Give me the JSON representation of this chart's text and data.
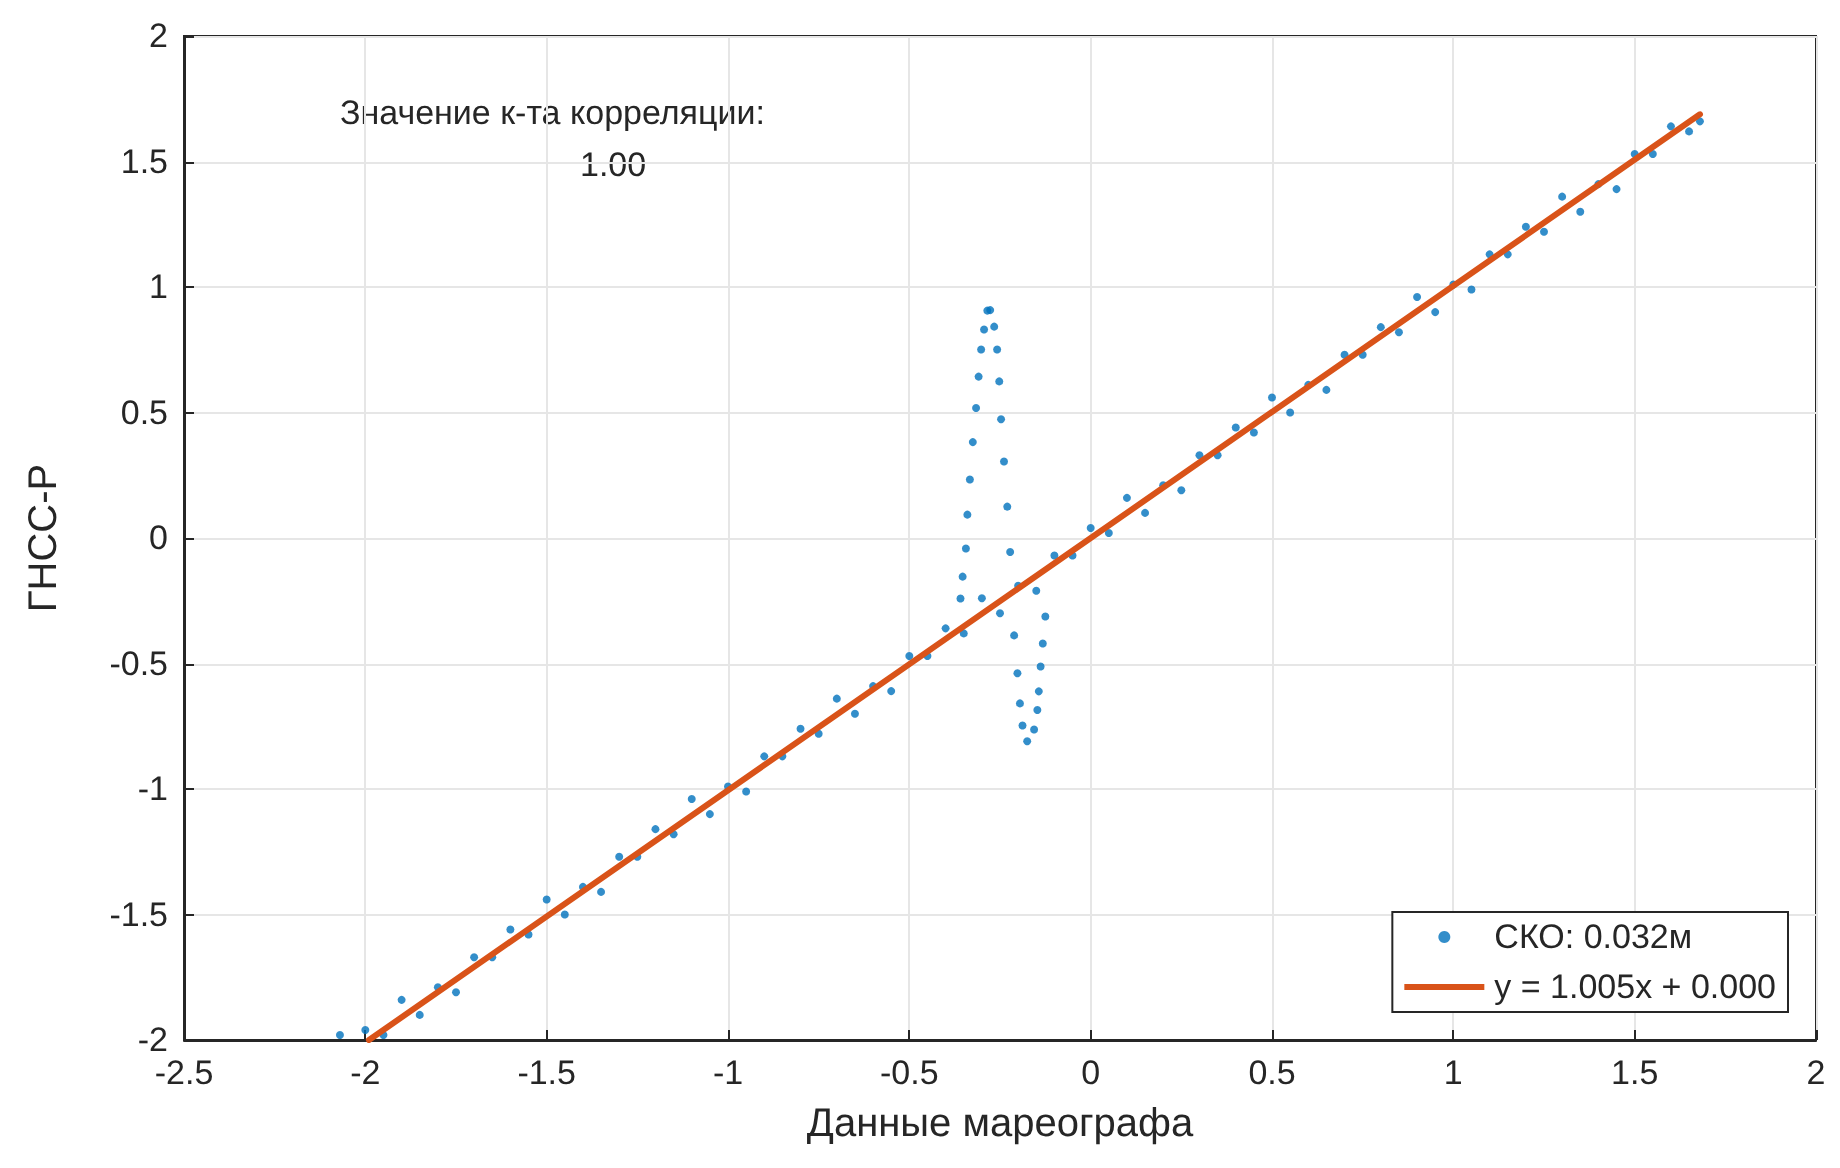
{
  "chart_data": {
    "type": "scatter",
    "xlabel": "Данные мареографа",
    "ylabel": "ГНСС-Р",
    "annotations": [
      "Значение к-та корреляции:",
      "1.00"
    ],
    "xlim": [
      -2.5,
      2
    ],
    "xticks": [
      -2.5,
      -2,
      -1.5,
      -1,
      -0.5,
      0,
      0.5,
      1,
      1.5,
      2
    ],
    "ylim": [
      -2,
      2
    ],
    "yticks": [
      -2,
      -1.5,
      -1,
      -0.5,
      0,
      0.5,
      1,
      1.5,
      2
    ],
    "grid": true,
    "legend": "bottom right",
    "series": [
      {
        "name": "СКО: 0.032м",
        "marker": "circle",
        "color": "#0072bd",
        "x": [
          -2.07,
          -2.0,
          -1.95,
          -1.9,
          -1.85,
          -1.8,
          -1.75,
          -1.7,
          -1.65,
          -1.6,
          -1.55,
          -1.5,
          -1.45,
          -1.4,
          -1.35,
          -1.3,
          -1.25,
          -1.2,
          -1.15,
          -1.1,
          -1.05,
          -1.0,
          -0.95,
          -0.9,
          -0.85,
          -0.8,
          -0.75,
          -0.7,
          -0.65,
          -0.6,
          -0.55,
          -0.5,
          -0.45,
          -0.4,
          -0.35,
          -0.3,
          -0.25,
          -0.2,
          -0.15,
          -0.1,
          -0.05,
          0.0,
          0.05,
          0.1,
          0.15,
          0.2,
          0.25,
          0.3,
          0.35,
          0.4,
          0.45,
          0.5,
          0.55,
          0.6,
          0.65,
          0.7,
          0.75,
          0.8,
          0.85,
          0.9,
          0.95,
          1.0,
          1.05,
          1.1,
          1.15,
          1.2,
          1.25,
          1.3,
          1.35,
          1.4,
          1.45,
          1.5,
          1.55,
          1.6,
          1.65,
          1.68,
          -0.359,
          -0.353,
          -0.344,
          -0.34,
          -0.333,
          -0.325,
          -0.316,
          -0.309,
          -0.302,
          -0.294,
          -0.285,
          -0.277,
          -0.266,
          -0.258,
          -0.252,
          -0.247,
          -0.239,
          -0.23,
          -0.222,
          -0.211,
          -0.202,
          -0.195,
          -0.188,
          -0.175,
          -0.156,
          -0.147,
          -0.143,
          -0.138,
          -0.132,
          -0.125
        ],
        "values": [
          -1.98,
          -1.96,
          -1.98,
          -1.84,
          -1.9,
          -1.79,
          -1.81,
          -1.67,
          -1.67,
          -1.56,
          -1.58,
          -1.44,
          -1.5,
          -1.39,
          -1.41,
          -1.27,
          -1.27,
          -1.16,
          -1.18,
          -1.04,
          -1.1,
          -0.99,
          -1.01,
          -0.87,
          -0.87,
          -0.76,
          -0.78,
          -0.64,
          -0.7,
          -0.59,
          -0.61,
          -0.47,
          -0.47,
          -0.36,
          -0.38,
          -0.24,
          -0.3,
          -0.19,
          -0.21,
          -0.07,
          -0.07,
          0.04,
          0.02,
          0.16,
          0.1,
          0.21,
          0.19,
          0.33,
          0.33,
          0.44,
          0.42,
          0.56,
          0.5,
          0.61,
          0.59,
          0.73,
          0.73,
          0.84,
          0.82,
          0.96,
          0.9,
          1.01,
          0.99,
          1.13,
          1.13,
          1.24,
          1.22,
          1.36,
          1.3,
          1.41,
          1.39,
          1.53,
          1.53,
          1.64,
          1.62,
          1.66,
          -0.241,
          -0.154,
          -0.042,
          0.093,
          0.233,
          0.382,
          0.518,
          0.643,
          0.751,
          0.831,
          0.906,
          0.908,
          0.842,
          0.751,
          0.624,
          0.473,
          0.305,
          0.125,
          -0.056,
          -0.388,
          -0.539,
          -0.659,
          -0.747,
          -0.81,
          -0.763,
          -0.685,
          -0.611,
          -0.512,
          -0.42,
          -0.313
        ]
      },
      {
        "name": "y = 1.005x + 0.000",
        "type": "line",
        "marker": "none",
        "line_style": "solid",
        "color": "#d95319",
        "x": [
          -1.99,
          1.68
        ],
        "values": [
          -2.0,
          1.688
        ]
      }
    ]
  }
}
